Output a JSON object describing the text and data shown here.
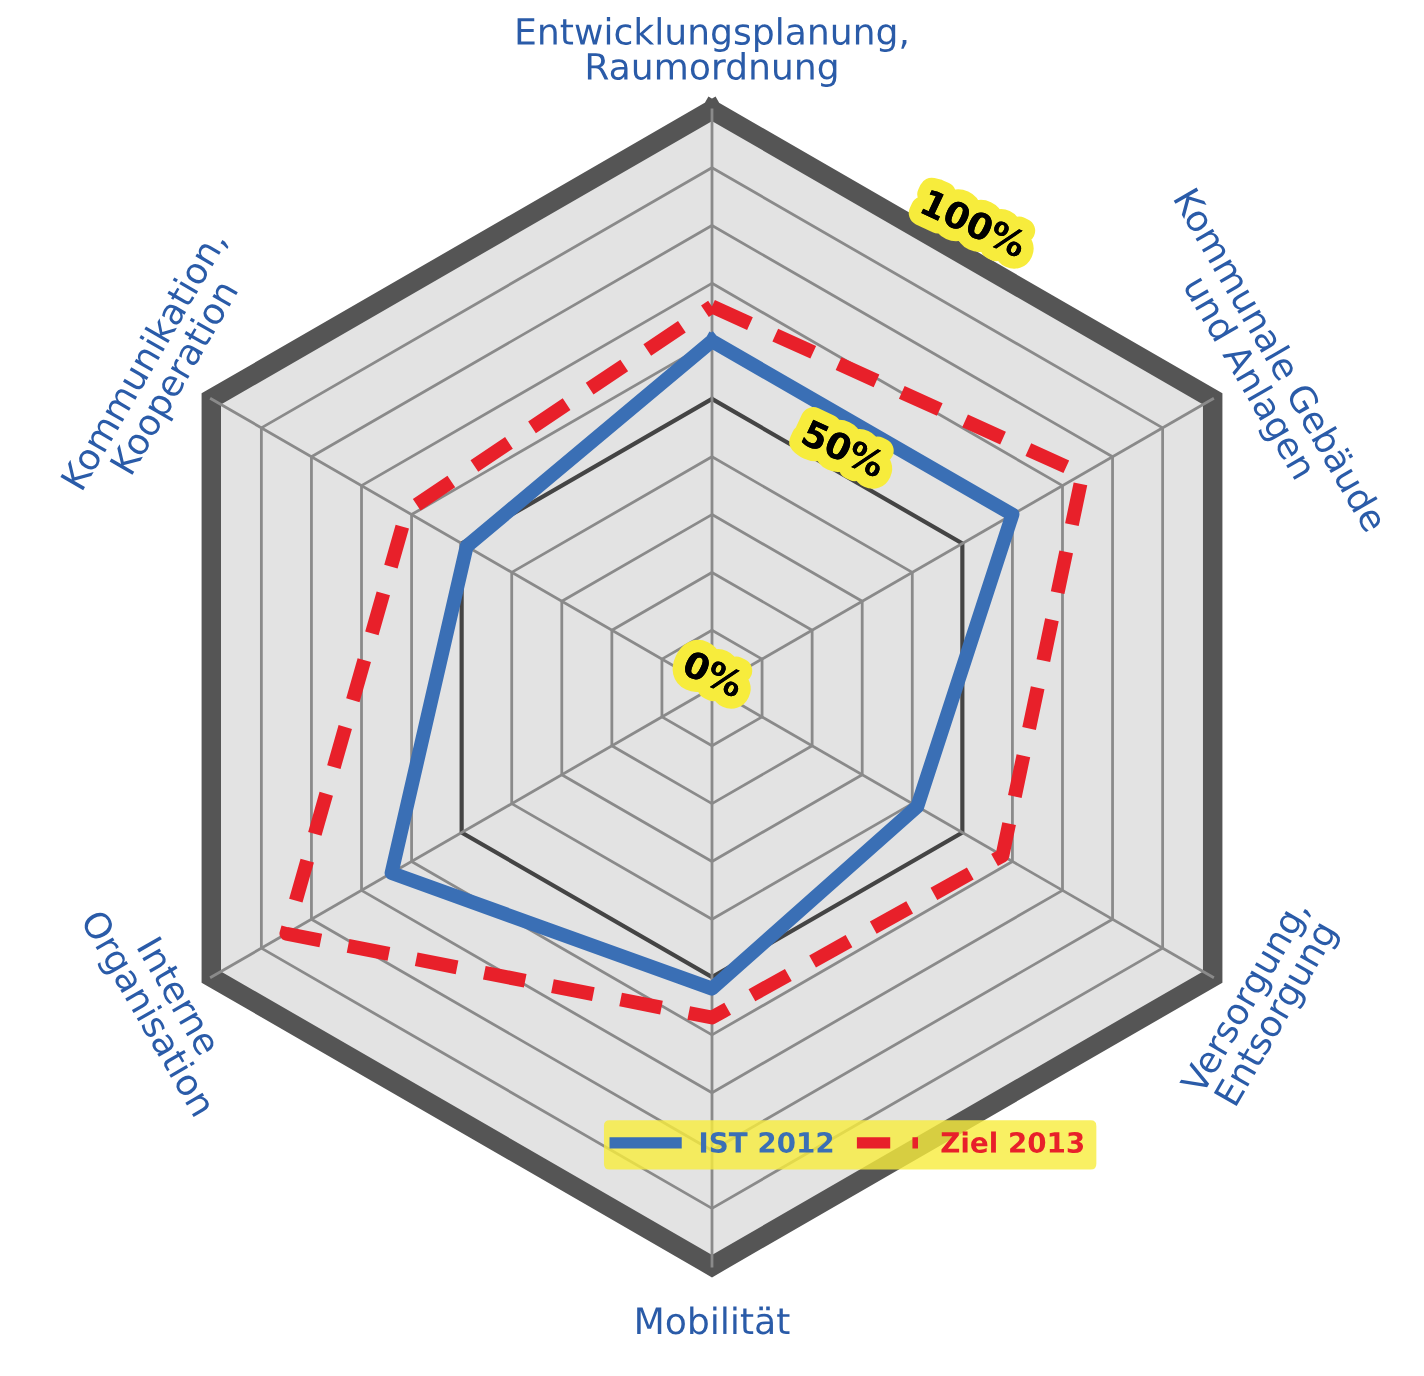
{
  "chart_data": {
    "type": "radar",
    "categories": [
      "Entwicklungsplanung,\nRaumordnung",
      "Kommunale Gebäude\nund Anlagen",
      "Versorgung,\nEntsorgung",
      "Mobilität",
      "Interne\nOrganisation",
      "Kommunikation,\nKooperation"
    ],
    "series": [
      {
        "name": "IST 2012",
        "color": "#3a6fb5",
        "line_style": "solid",
        "values": [
          60,
          60,
          41,
          52,
          64,
          49
        ]
      },
      {
        "name": "Ziel 2013",
        "color": "#e8202a",
        "line_style": "dashed",
        "values": [
          66,
          74,
          58,
          57,
          85,
          61
        ]
      }
    ],
    "ylim": [
      0,
      100
    ],
    "yticks": [
      {
        "value": 0,
        "label": "0%"
      },
      {
        "value": 50,
        "label": "50%"
      },
      {
        "value": 100,
        "label": "100%"
      }
    ],
    "grid": true,
    "legend": "bottom right"
  }
}
